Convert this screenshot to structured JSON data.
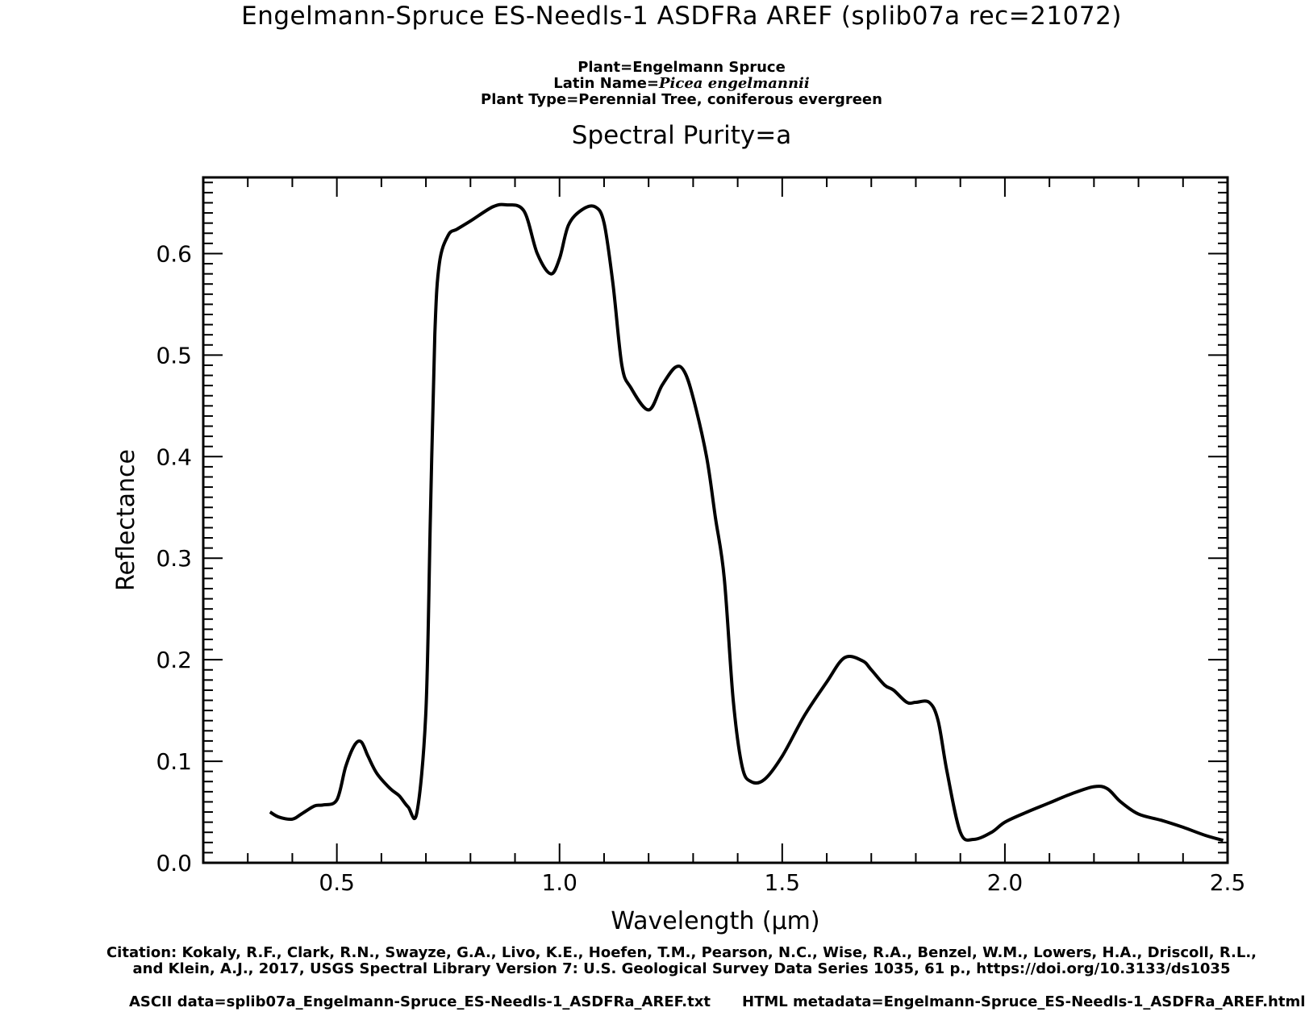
{
  "header": {
    "title": "Engelmann-Spruce ES-Needls-1 ASDFRa AREF   (splib07a rec=21072)",
    "plant": "Plant=Engelmann Spruce",
    "latin_prefix": "Latin Name=",
    "latin_name": "Picea engelmannii",
    "plant_type": "Plant Type=Perennial Tree, coniferous evergreen",
    "purity": "Spectral Purity=a"
  },
  "footer": {
    "citation_line1": "Citation: Kokaly, R.F., Clark, R.N., Swayze, G.A., Livo, K.E., Hoefen, T.M., Pearson, N.C., Wise, R.A., Benzel, W.M., Lowers, H.A., Driscoll, R.L.,",
    "citation_line2": "and Klein, A.J., 2017, USGS Spectral Library Version 7: U.S. Geological Survey Data Series 1035, 61 p., https://doi.org/10.3133/ds1035",
    "ascii": "ASCII data=splib07a_Engelmann-Spruce_ES-Needls-1_ASDFRa_AREF.txt",
    "html": "HTML metadata=Engelmann-Spruce_ES-Needls-1_ASDFRa_AREF.html"
  },
  "chart_data": {
    "type": "line",
    "title": "Engelmann-Spruce ES-Needls-1 ASDFRa AREF   (splib07a rec=21072)",
    "subtitle": "Spectral Purity=a",
    "xlabel": "Wavelength (μm)",
    "ylabel": "Reflectance",
    "xlim": [
      0.2,
      2.5
    ],
    "ylim": [
      0.0,
      0.675
    ],
    "xticks": [
      0.5,
      1.0,
      1.5,
      2.0,
      2.5
    ],
    "xtick_labels": [
      "0.5",
      "1.0",
      "1.5",
      "2.0",
      "2.5"
    ],
    "yticks": [
      0.0,
      0.1,
      0.2,
      0.3,
      0.4,
      0.5,
      0.6
    ],
    "ytick_labels": [
      "0.0",
      "0.1",
      "0.2",
      "0.3",
      "0.4",
      "0.5",
      "0.6"
    ],
    "grid": false,
    "line_color": "#000000",
    "series": [
      {
        "x": [
          0.35,
          0.37,
          0.4,
          0.42,
          0.45,
          0.47,
          0.5,
          0.52,
          0.54,
          0.555,
          0.57,
          0.59,
          0.62,
          0.64,
          0.66,
          0.68,
          0.7,
          0.71,
          0.72,
          0.73,
          0.75,
          0.77,
          0.8,
          0.85,
          0.88,
          0.92,
          0.95,
          0.98,
          1.0,
          1.02,
          1.05,
          1.08,
          1.1,
          1.12,
          1.14,
          1.16,
          1.2,
          1.23,
          1.26,
          1.28,
          1.3,
          1.33,
          1.35,
          1.37,
          1.39,
          1.41,
          1.43,
          1.46,
          1.5,
          1.55,
          1.6,
          1.64,
          1.68,
          1.7,
          1.73,
          1.75,
          1.78,
          1.8,
          1.83,
          1.85,
          1.87,
          1.9,
          1.93,
          1.97,
          2.0,
          2.05,
          2.1,
          2.15,
          2.2,
          2.23,
          2.26,
          2.3,
          2.35,
          2.4,
          2.45,
          2.49
        ],
        "y": [
          0.05,
          0.045,
          0.043,
          0.048,
          0.056,
          0.057,
          0.062,
          0.095,
          0.116,
          0.119,
          0.105,
          0.088,
          0.073,
          0.066,
          0.055,
          0.05,
          0.15,
          0.34,
          0.52,
          0.59,
          0.618,
          0.624,
          0.632,
          0.646,
          0.648,
          0.642,
          0.6,
          0.58,
          0.595,
          0.628,
          0.643,
          0.646,
          0.63,
          0.57,
          0.49,
          0.468,
          0.446,
          0.47,
          0.488,
          0.484,
          0.458,
          0.4,
          0.34,
          0.28,
          0.16,
          0.095,
          0.08,
          0.082,
          0.105,
          0.145,
          0.178,
          0.202,
          0.199,
          0.19,
          0.175,
          0.17,
          0.158,
          0.158,
          0.158,
          0.14,
          0.09,
          0.03,
          0.023,
          0.03,
          0.04,
          0.05,
          0.059,
          0.068,
          0.075,
          0.073,
          0.06,
          0.048,
          0.042,
          0.035,
          0.027,
          0.022
        ]
      }
    ]
  }
}
